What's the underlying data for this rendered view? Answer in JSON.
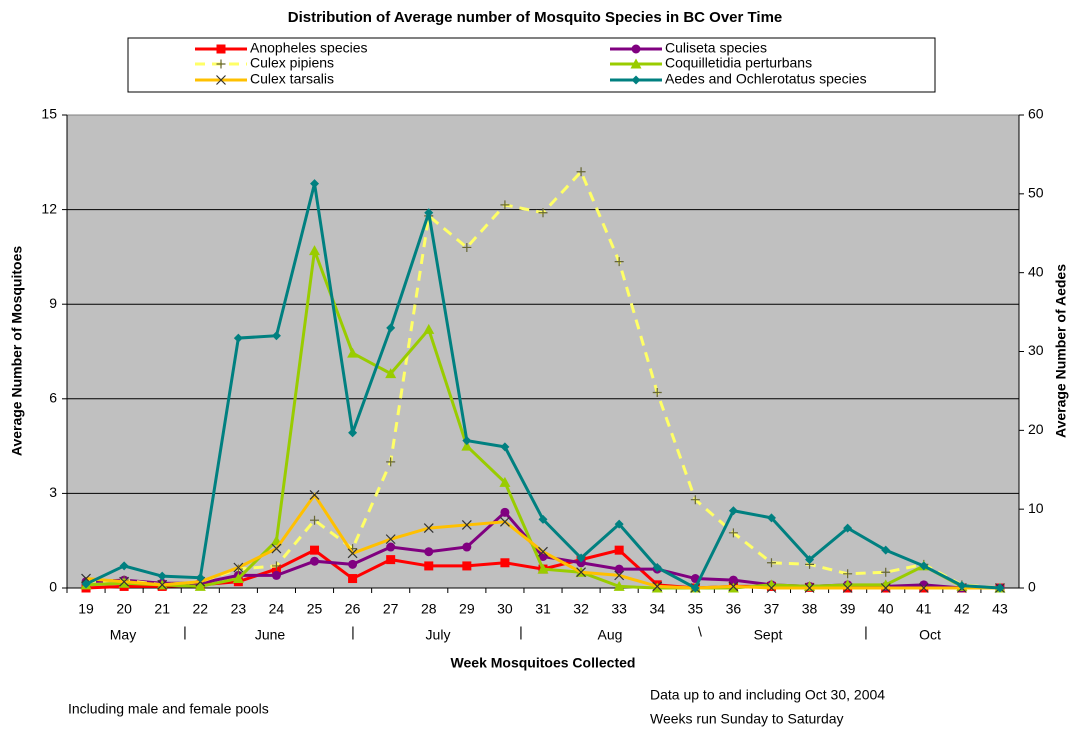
{
  "chart_data": {
    "type": "line",
    "title": "Distribution of Average number of Mosquito Species in BC Over Time",
    "xlabel": "Week Mosquitoes Collected",
    "ylabel": "Average Number of Mosquitoes",
    "y2label": "Average Number of Aedes",
    "categories": [
      "19",
      "20",
      "21",
      "22",
      "23",
      "24",
      "25",
      "26",
      "27",
      "28",
      "29",
      "30",
      "31",
      "32",
      "33",
      "34",
      "35",
      "36",
      "37",
      "38",
      "39",
      "40",
      "41",
      "42",
      "43"
    ],
    "months": [
      "May",
      "June",
      "July",
      "Aug",
      "Sept",
      "Oct"
    ],
    "month_separators": [
      "|",
      "|",
      "|",
      "\\",
      "|"
    ],
    "ylim": [
      0,
      15
    ],
    "yticks": [
      0,
      3,
      6,
      9,
      12,
      15
    ],
    "y2lim": [
      0,
      60
    ],
    "y2ticks": [
      0,
      10,
      20,
      30,
      40,
      50,
      60
    ],
    "grid": true,
    "series": [
      {
        "name": "Anopheles species",
        "color": "#ff0000",
        "marker": "square",
        "values": [
          0,
          0.05,
          0.05,
          0.1,
          0.2,
          0.6,
          1.2,
          0.3,
          0.9,
          0.7,
          0.7,
          0.8,
          0.6,
          0.9,
          1.2,
          0.1,
          0,
          0.05,
          0.05,
          0.02,
          0,
          0,
          0,
          0,
          0
        ]
      },
      {
        "name": "Culiseta species",
        "color": "#800080",
        "marker": "circle",
        "values": [
          0.2,
          0.25,
          0.15,
          0.15,
          0.4,
          0.4,
          0.85,
          0.75,
          1.3,
          1.15,
          1.3,
          2.4,
          1.0,
          0.8,
          0.6,
          0.6,
          0.3,
          0.25,
          0.1,
          0.05,
          0.1,
          0.05,
          0.1,
          0,
          0
        ]
      },
      {
        "name": "Culex pipiens",
        "color": "#ffff66",
        "marker": "plus",
        "dash": true,
        "values": [
          0.2,
          0.25,
          0.1,
          0.2,
          0.6,
          0.7,
          2.15,
          1.25,
          4.0,
          11.8,
          10.8,
          12.15,
          11.9,
          13.2,
          10.35,
          6.2,
          2.8,
          1.75,
          0.8,
          0.75,
          0.45,
          0.5,
          0.75,
          0.1,
          0
        ]
      },
      {
        "name": "Coquilletidia perturbans",
        "color": "#99cc00",
        "marker": "triangle",
        "values": [
          0.1,
          0.15,
          0.1,
          0.05,
          0.3,
          1.5,
          10.7,
          7.45,
          6.8,
          8.2,
          4.5,
          3.35,
          0.6,
          0.5,
          0.05,
          0,
          0,
          0,
          0.1,
          0.05,
          0.1,
          0.1,
          0.7,
          0.05,
          0
        ]
      },
      {
        "name": "Culex tarsalis",
        "color": "#ffc000",
        "marker": "x",
        "values": [
          0.3,
          0.2,
          0.1,
          0.2,
          0.65,
          1.25,
          2.95,
          1.1,
          1.55,
          1.9,
          2.0,
          2.1,
          1.15,
          0.5,
          0.4,
          0.05,
          0,
          0.05,
          0,
          0,
          0,
          0,
          0,
          0,
          0
        ]
      },
      {
        "name": "Aedes and Ochlerotatus species",
        "color": "#008080",
        "marker": "diamond",
        "axis": "y2",
        "values": [
          0.5,
          2.8,
          1.5,
          1.3,
          31.7,
          32.0,
          51.3,
          19.7,
          33.0,
          47.6,
          18.7,
          17.9,
          8.7,
          3.8,
          8.1,
          2.6,
          0,
          9.8,
          8.9,
          3.6,
          7.6,
          4.8,
          2.8,
          0.3,
          0
        ]
      }
    ],
    "notes": [
      "Including male and female pools",
      "Data up to and including Oct 30, 2004",
      "Weeks run Sunday to Saturday"
    ]
  }
}
